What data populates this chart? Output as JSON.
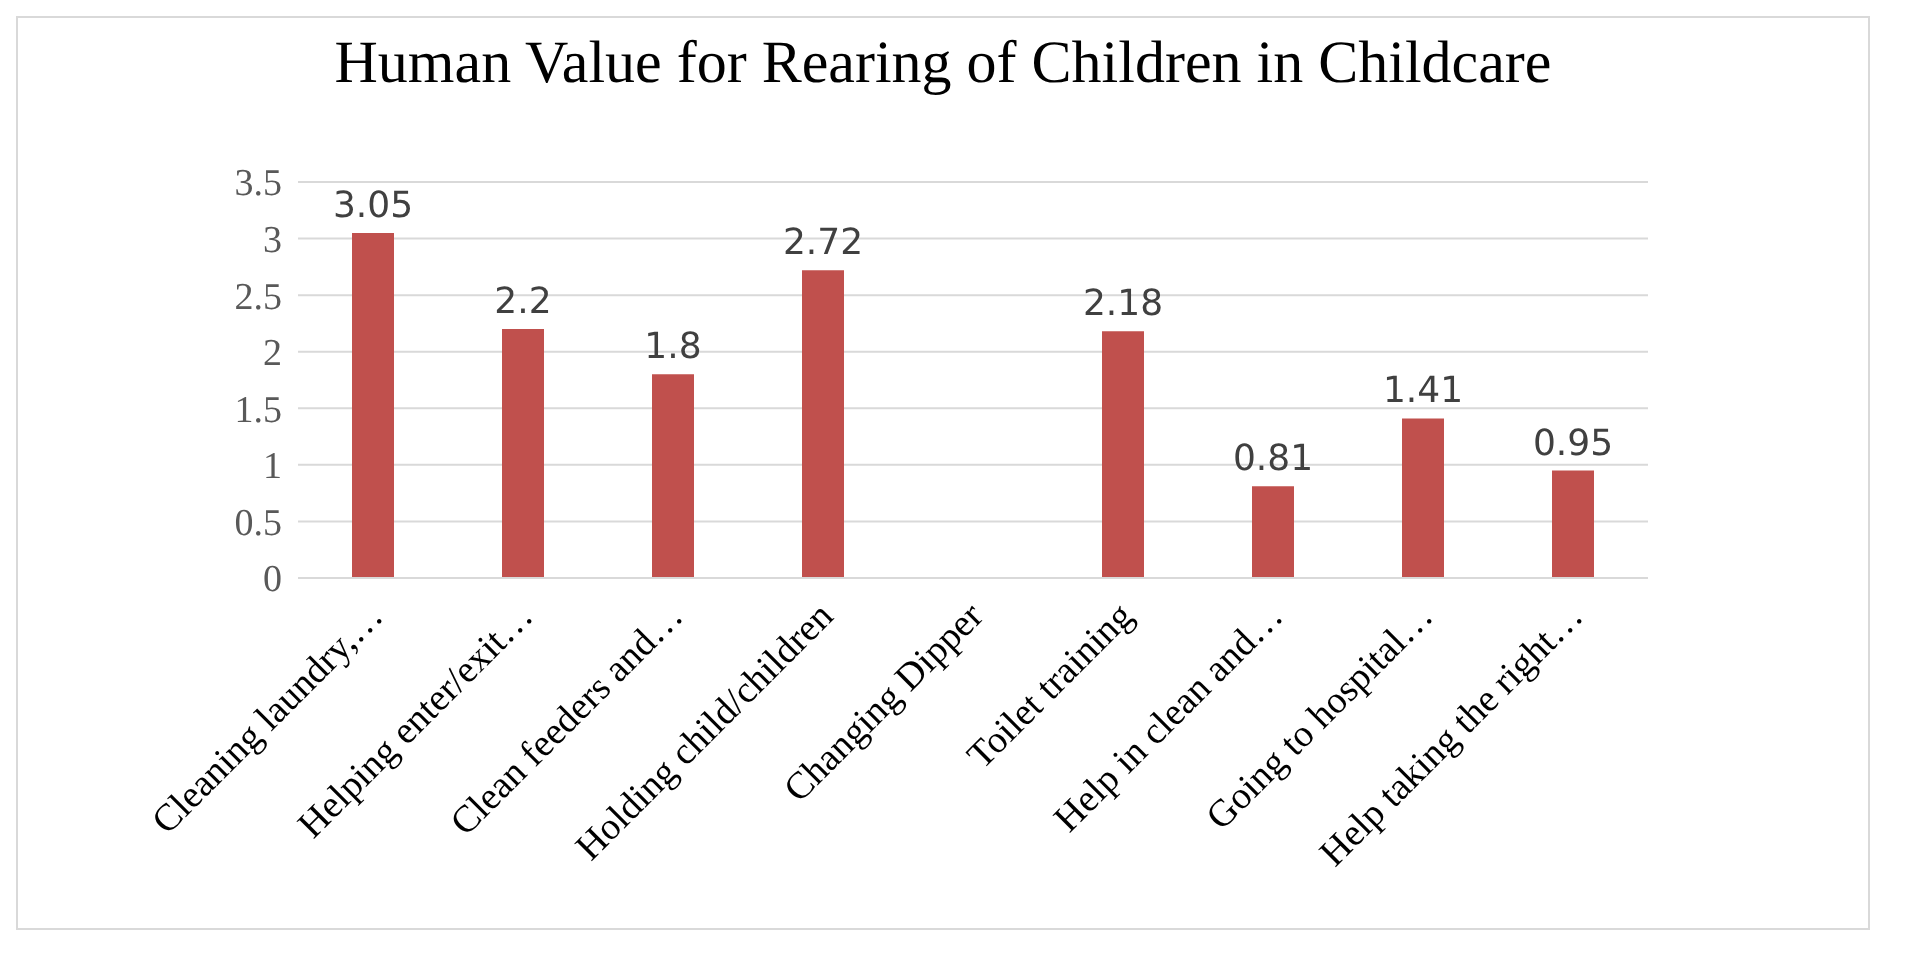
{
  "chart_data": {
    "type": "bar",
    "title": "Human Value for Rearing of Children in Childcare",
    "categories": [
      "Cleaning laundry,…",
      "Helping enter/exit…",
      "Clean feeders and…",
      "Holding child/children",
      "Changing Dipper",
      "Toilet training",
      "Help in clean and…",
      "Going to hospital…",
      "Help taking the right…"
    ],
    "values": [
      3.05,
      2.2,
      1.8,
      2.72,
      null,
      2.18,
      0.81,
      1.41,
      0.95
    ],
    "color": "#c0504d",
    "ylim": [
      0,
      3.5
    ],
    "yticks": [
      0,
      0.5,
      1,
      1.5,
      2,
      2.5,
      3,
      3.5
    ],
    "grid": "y",
    "data_labels": true,
    "legend": false
  }
}
